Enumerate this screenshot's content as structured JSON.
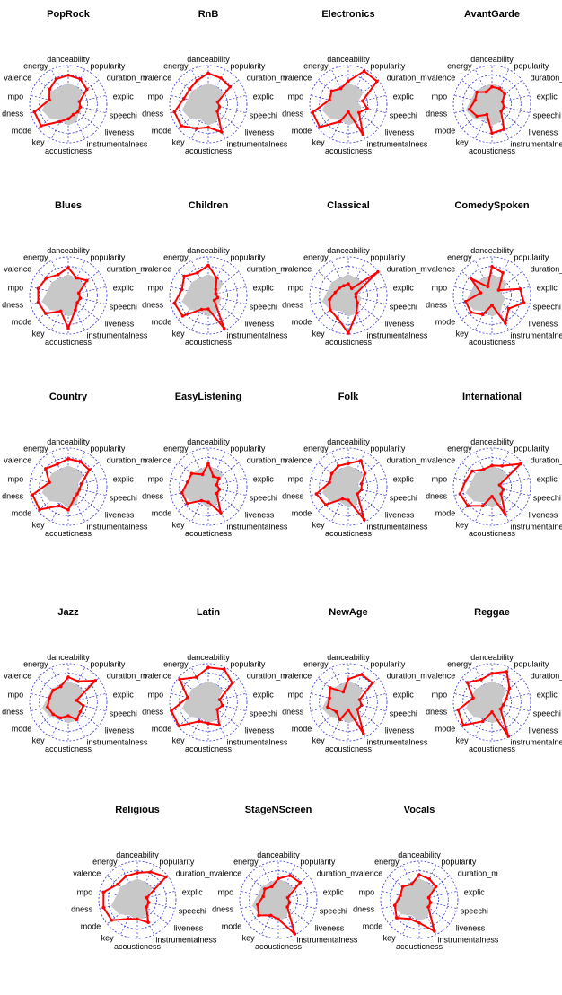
{
  "chart_data": {
    "type": "radar",
    "axes": [
      "danceability",
      "popularity",
      "duration_ms",
      "explicit",
      "speechiness",
      "liveness",
      "instrumentalness",
      "acousticness",
      "key",
      "mode",
      "loudness",
      "tempo",
      "valence",
      "energy"
    ],
    "axis_tick_labels": [
      "danceability",
      "popularity",
      "duration_m",
      "explic",
      "speechi",
      "liveness",
      "instrumentalness",
      "acousticness",
      "key",
      "mode",
      "dness",
      "mpo",
      "valence",
      "energy"
    ],
    "rlim": [
      0,
      1
    ],
    "rings": 4,
    "grid": true,
    "average_profile": [
      0.55,
      0.5,
      0.5,
      0.25,
      0.35,
      0.35,
      0.5,
      0.55,
      0.45,
      0.6,
      0.7,
      0.55,
      0.55,
      0.5
    ],
    "colors": {
      "genre_line": "#ff0000",
      "average_fill": "#c8c8c8",
      "grid": "#3333cc"
    },
    "charts": [
      {
        "title": "PopRock",
        "values": [
          0.75,
          0.72,
          0.62,
          0.3,
          0.32,
          0.32,
          0.3,
          0.38,
          0.5,
          0.9,
          0.9,
          0.5,
          0.62,
          0.72
        ]
      },
      {
        "title": "RnB",
        "values": [
          0.8,
          0.75,
          0.72,
          0.25,
          0.3,
          0.3,
          0.8,
          0.6,
          0.7,
          0.9,
          0.9,
          0.65,
          0.62,
          0.68
        ]
      },
      {
        "title": "Electronics",
        "values": [
          0.6,
          0.95,
          0.95,
          0.38,
          0.5,
          0.35,
          0.88,
          0.2,
          0.5,
          0.95,
          0.95,
          0.5,
          0.55,
          0.45
        ]
      },
      {
        "title": "AvantGarde",
        "values": [
          0.45,
          0.45,
          0.42,
          0.28,
          0.32,
          0.3,
          0.72,
          0.75,
          0.3,
          0.5,
          0.6,
          0.45,
          0.5,
          0.35
        ]
      },
      {
        "title": "Blues",
        "values": [
          0.72,
          0.5,
          0.62,
          0.28,
          0.32,
          0.3,
          0.42,
          0.85,
          0.45,
          0.75,
          0.8,
          0.8,
          0.72,
          0.6
        ]
      },
      {
        "title": "Children",
        "values": [
          0.78,
          0.5,
          0.25,
          0.2,
          0.25,
          0.2,
          0.95,
          0.35,
          0.4,
          0.85,
          0.9,
          0.7,
          0.8,
          0.65
        ]
      },
      {
        "title": "Classical",
        "values": [
          0.3,
          0.2,
          0.98,
          0.2,
          0.2,
          0.3,
          0.5,
          0.98,
          0.65,
          0.6,
          0.5,
          0.35,
          0.3,
          0.28
        ]
      },
      {
        "title": "ComedySpoken",
        "values": [
          0.75,
          0.65,
          0.22,
          0.75,
          0.85,
          0.55,
          0.8,
          0.25,
          0.55,
          0.7,
          0.7,
          0.3,
          0.7,
          0.25
        ]
      },
      {
        "title": "Country",
        "values": [
          0.72,
          0.72,
          0.7,
          0.35,
          0.3,
          0.3,
          0.35,
          0.6,
          0.55,
          0.95,
          0.95,
          0.5,
          0.75,
          0.65
        ]
      },
      {
        "title": "EasyListening",
        "values": [
          0.6,
          0.3,
          0.35,
          0.22,
          0.3,
          0.28,
          0.75,
          0.4,
          0.4,
          0.7,
          0.7,
          0.55,
          0.55,
          0.35
        ]
      },
      {
        "title": "Folk",
        "values": [
          0.6,
          0.75,
          0.55,
          0.35,
          0.35,
          0.3,
          0.95,
          0.35,
          0.35,
          0.75,
          0.85,
          0.5,
          0.55,
          0.6
        ]
      },
      {
        "title": "International",
        "values": [
          0.55,
          0.6,
          0.95,
          0.2,
          0.3,
          0.3,
          0.8,
          0.25,
          0.55,
          0.8,
          0.85,
          0.7,
          0.65,
          0.5
        ]
      },
      {
        "title": "Jazz",
        "values": [
          0.65,
          0.6,
          0.9,
          0.22,
          0.4,
          0.4,
          0.5,
          0.35,
          0.45,
          0.5,
          0.55,
          0.5,
          0.5,
          0.45
        ]
      },
      {
        "title": "Latin",
        "values": [
          0.9,
          0.95,
          0.8,
          0.3,
          0.38,
          0.3,
          0.65,
          0.55,
          0.55,
          0.98,
          0.98,
          0.55,
          0.95,
          0.72
        ]
      },
      {
        "title": "NewAge",
        "values": [
          0.6,
          0.8,
          0.8,
          0.3,
          0.35,
          0.3,
          0.9,
          0.2,
          0.5,
          0.4,
          0.55,
          0.5,
          0.6,
          0.3
        ]
      },
      {
        "title": "Reggae",
        "values": [
          0.75,
          0.88,
          0.58,
          0.38,
          0.3,
          0.28,
          0.98,
          0.25,
          0.55,
          0.95,
          0.9,
          0.5,
          0.82,
          0.65
        ]
      },
      {
        "title": "Religious",
        "values": [
          0.7,
          0.8,
          0.95,
          0.25,
          0.3,
          0.3,
          0.65,
          0.5,
          0.55,
          0.85,
          0.9,
          0.9,
          0.65,
          0.68
        ]
      },
      {
        "title": "StageNScreen",
        "values": [
          0.55,
          0.7,
          0.72,
          0.25,
          0.3,
          0.3,
          0.98,
          0.5,
          0.45,
          0.65,
          0.55,
          0.4,
          0.45,
          0.38
        ]
      },
      {
        "title": "Vocals",
        "values": [
          0.65,
          0.6,
          0.55,
          0.25,
          0.3,
          0.3,
          0.9,
          0.6,
          0.55,
          0.75,
          0.65,
          0.5,
          0.55,
          0.45
        ]
      }
    ]
  }
}
